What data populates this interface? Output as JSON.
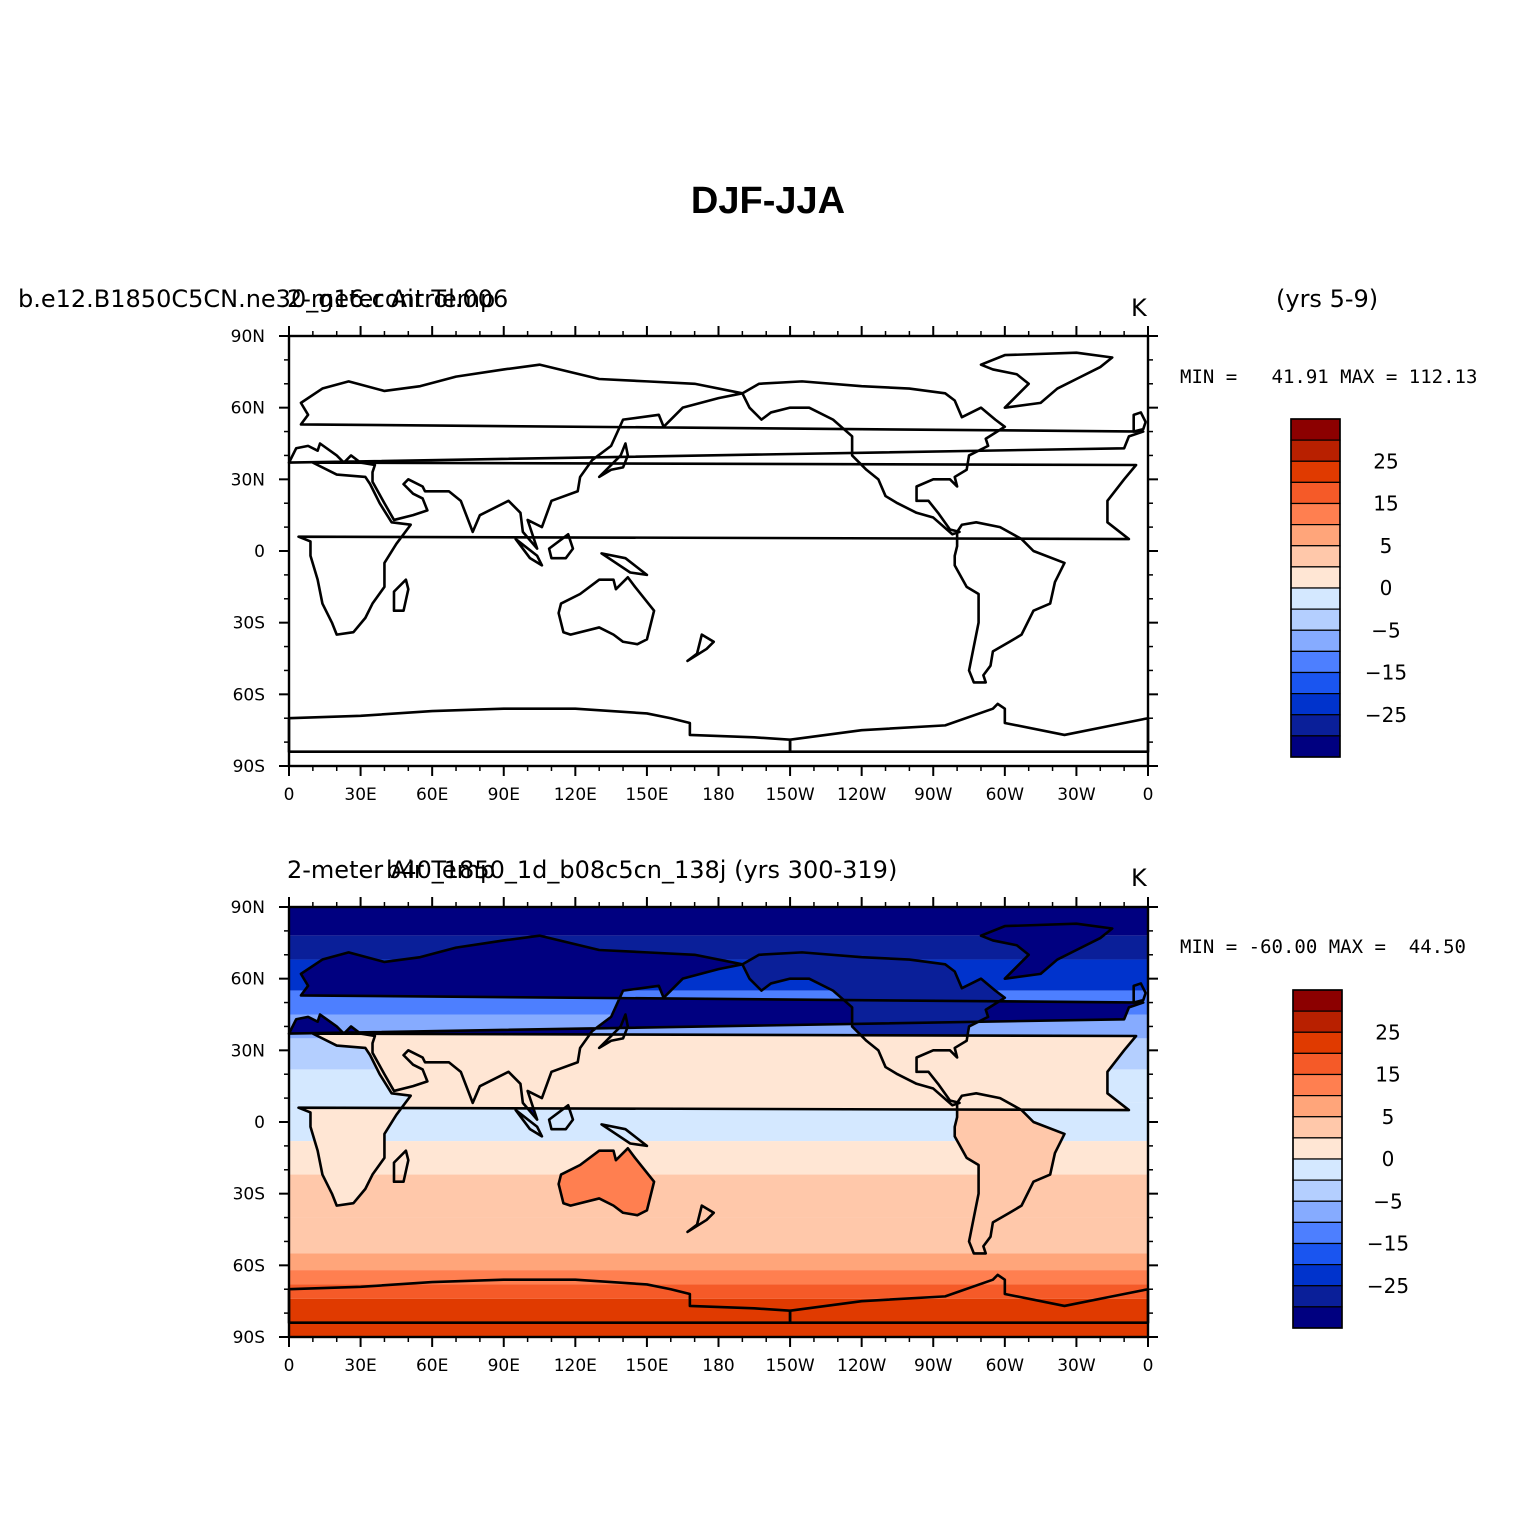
{
  "figure": {
    "title": "DJF-JJA",
    "panels": [
      {
        "left_title": "b.e12.B1850C5CN.ne30_g16.control.006",
        "center_title": "2-meter Air Temp",
        "right_title": "(yrs 5-9)",
        "units": "K",
        "stats": "MIN =   41.91 MAX = 112.13",
        "field": "empty"
      },
      {
        "left_title": "2-meter Air Temp",
        "center_title": "b40_1850_1d_b08c5cn_138j (yrs 300-319)",
        "right_title": "",
        "units": "K",
        "stats": "MIN = -60.00 MAX =  44.50",
        "field": "filled"
      }
    ],
    "lon_ticks": [
      "0",
      "30E",
      "60E",
      "90E",
      "120E",
      "150E",
      "180",
      "150W",
      "120W",
      "90W",
      "60W",
      "30W",
      "0"
    ],
    "lat_ticks": [
      "90N",
      "60N",
      "30N",
      "0",
      "30S",
      "60S",
      "90S"
    ],
    "colorbar": {
      "labels": [
        "25",
        "15",
        "5",
        "0",
        "-5",
        "-15",
        "-25"
      ],
      "colors": [
        "#8c0000",
        "#b82000",
        "#e03a00",
        "#f55a28",
        "#ff7f50",
        "#ffa57a",
        "#ffc8aa",
        "#ffe6d4",
        "#d4e8ff",
        "#b4cfff",
        "#86abff",
        "#4d7fff",
        "#1a55f0",
        "#0033cc",
        "#0a1f99",
        "#000080"
      ]
    }
  }
}
